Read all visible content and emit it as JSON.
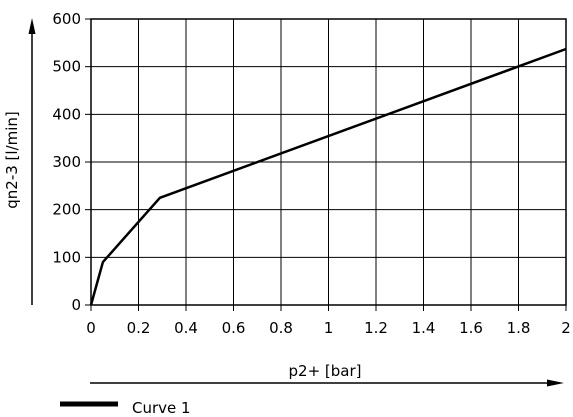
{
  "chart_data": {
    "type": "line",
    "xlabel": "p2+ [bar]",
    "ylabel": "qn2-3 [l/min]",
    "xlim": [
      0,
      2
    ],
    "ylim": [
      0,
      600
    ],
    "x_ticks": [
      "0",
      "0.2",
      "0.4",
      "0.6",
      "0.8",
      "1",
      "1.2",
      "1.4",
      "1.6",
      "1.8",
      "2"
    ],
    "y_ticks": [
      "0",
      "100",
      "200",
      "300",
      "400",
      "500",
      "600"
    ],
    "grid": true,
    "legend_position": "bottom-left",
    "series": [
      {
        "name": "Curve 1",
        "color": "#000000",
        "x": [
          0,
          0.05,
          0.29,
          2
        ],
        "y": [
          0,
          90,
          225,
          537
        ]
      }
    ]
  }
}
